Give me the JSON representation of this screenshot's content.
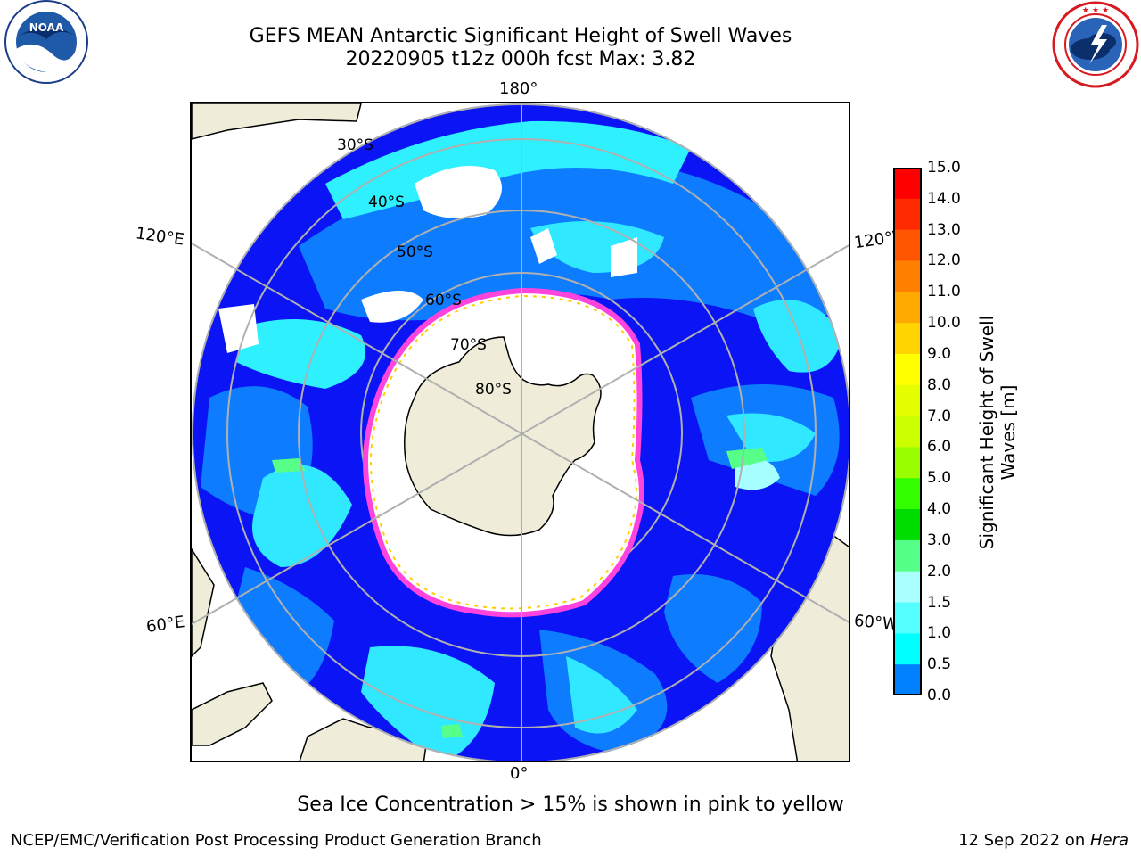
{
  "header": {
    "title_line1": "GEFS MEAN Antarctic Significant Height of Swell Waves",
    "title_line2": "20220905 t12z 000h fcst   Max: 3.82"
  },
  "logos": {
    "left": "NOAA",
    "left_ring_text": "NATIONAL OCEANIC AND ATMOSPHERIC ADMINISTRATION · U.S. DEPARTMENT OF COMMERCE",
    "right_ring_text": "NATIONAL WEATHER SERVICE"
  },
  "map": {
    "projection": "south polar stereographic",
    "longitude_labels": {
      "top": "180°",
      "bottom": "0°",
      "upper_left": "120°E",
      "lower_left": "60°E",
      "upper_right": "120°W",
      "lower_right": "60°W"
    },
    "latitude_labels": [
      "30°S",
      "40°S",
      "50°S",
      "60°S",
      "70°S",
      "80°S"
    ],
    "colors": {
      "land": "#efedd9",
      "gridline": "#b0b0b0",
      "coast": "#000000"
    }
  },
  "colorbar": {
    "label_line1": "Significant Height of Swell",
    "label_line2": "Waves [m]",
    "ticks": [
      "15.0",
      "14.0",
      "13.0",
      "12.0",
      "11.0",
      "10.0",
      "9.0",
      "8.0",
      "7.0",
      "6.0",
      "5.0",
      "4.0",
      "3.0",
      "2.0",
      "1.5",
      "1.0",
      "0.5",
      "0.0"
    ],
    "colors_top_to_bottom": [
      "#ff0000",
      "#ff2a00",
      "#ff5500",
      "#ff8000",
      "#ffaa00",
      "#ffd400",
      "#ffff00",
      "#e6ff00",
      "#ccff00",
      "#99ff00",
      "#33ff00",
      "#00dd00",
      "#55ff88",
      "#aaffff",
      "#55ffff",
      "#00ffff",
      "#0080ff",
      "#0000ff"
    ]
  },
  "notes": {
    "ice": "Sea Ice Concentration > 15% is shown in pink to yellow"
  },
  "footer": {
    "left": "NCEP/EMC/Verification Post Processing Product Generation Branch",
    "date": "12 Sep 2022 on ",
    "machine": "Hera"
  }
}
